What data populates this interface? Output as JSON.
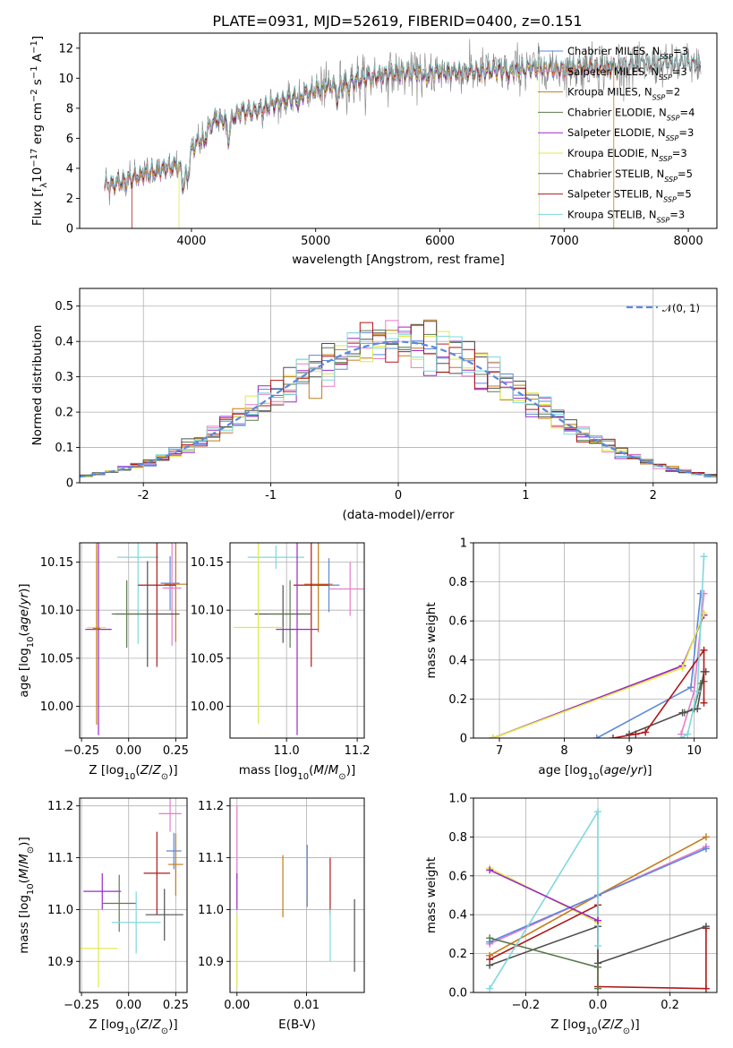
{
  "figure_title": "PLATE=0931, MJD=52619, FIBERID=0400, z=0.151",
  "colors": {
    "Chabrier MILES": "#5b88dc",
    "Salpeter MILES": "#e77bc9",
    "Kroupa MILES": "#c57b19",
    "Chabrier ELODIE": "#5d7a4f",
    "Salpeter ELODIE": "#9a28c9",
    "Kroupa ELODIE": "#e0e84a",
    "Chabrier STELIB": "#505050",
    "Salpeter STELIB": "#b01818",
    "Kroupa STELIB": "#7fd8dc",
    "data": "#808080",
    "gauss": "#5b88dc"
  },
  "chart_data": [
    {
      "id": "spectrum",
      "type": "line",
      "title": "PLATE=0931, MJD=52619, FIBERID=0400, z=0.151",
      "xlabel": "wavelength [Angstrom, rest frame]",
      "ylabel": "Flux [f_λ 10^-17 erg cm^-2 s^-1 A^-1]",
      "xlim": [
        3100,
        8230
      ],
      "ylim": [
        0,
        13
      ],
      "xticks": [
        4000,
        5000,
        6000,
        7000,
        8000
      ],
      "yticks": [
        0,
        2,
        4,
        6,
        8,
        10,
        12
      ],
      "grid": false,
      "legend_position": "upper-right",
      "legend": [
        {
          "name": "Chabrier MILES",
          "nssp": "3"
        },
        {
          "name": "Salpeter MILES",
          "nssp": "3"
        },
        {
          "name": "Kroupa MILES",
          "nssp": "2"
        },
        {
          "name": "Chabrier ELODIE",
          "nssp": "4"
        },
        {
          "name": "Salpeter ELODIE",
          "nssp": "3"
        },
        {
          "name": "Kroupa ELODIE",
          "nssp": "3"
        },
        {
          "name": "Chabrier STELIB",
          "nssp": "5"
        },
        {
          "name": "Salpeter STELIB",
          "nssp": "5"
        },
        {
          "name": "Kroupa STELIB",
          "nssp": "3"
        }
      ],
      "continuum": {
        "x": [
          3300,
          3400,
          3500,
          3600,
          3700,
          3800,
          3900,
          4000,
          4100,
          4200,
          4300,
          4400,
          4500,
          4600,
          4800,
          5000,
          5200,
          5400,
          5600,
          5800,
          6000,
          6200,
          6400,
          6600,
          6800,
          7000,
          7200,
          7400,
          7600,
          7800,
          8000,
          8100
        ],
        "y": [
          2.9,
          3.0,
          3.3,
          3.6,
          3.8,
          4.0,
          4.2,
          5.2,
          6.4,
          7.3,
          7.2,
          7.8,
          7.8,
          8.1,
          8.7,
          9.2,
          9.7,
          10.0,
          10.3,
          10.4,
          10.4,
          10.4,
          10.5,
          10.6,
          10.7,
          10.6,
          10.8,
          10.7,
          10.8,
          10.9,
          10.9,
          10.8
        ]
      }
    },
    {
      "id": "residuals",
      "type": "step",
      "xlabel": "(data-model)/error",
      "ylabel": "Normed distribution",
      "xlim": [
        -2.5,
        2.5
      ],
      "ylim": [
        0,
        0.55
      ],
      "xticks": [
        -2,
        -1,
        0,
        1,
        2
      ],
      "yticks": [
        0.0,
        0.1,
        0.2,
        0.3,
        0.4,
        0.5
      ],
      "grid": true,
      "legend_position": "upper-right",
      "gauss_label": "𝒩(0, 1)",
      "bin_width": 0.1
    },
    {
      "id": "age-vs-Z",
      "type": "scatter",
      "xlabel": "Z [log10(Z/Z⊙)]",
      "ylabel": "age  [log10(age/yr)]",
      "xlim": [
        -0.26,
        0.31
      ],
      "ylim": [
        9.967,
        10.17
      ],
      "xticks": [
        -0.25,
        0.0,
        0.25
      ],
      "xticklabels": [
        "−0.25",
        "0.00",
        "0.25"
      ],
      "yticks": [
        10.0,
        10.05,
        10.1,
        10.15
      ],
      "yticklabels": [
        "10.00",
        "10.05",
        "10.10",
        "10.15"
      ],
      "grid": true,
      "points": [
        {
          "model": "Kroupa STELIB",
          "x": 0.05,
          "xerr": 0.11,
          "y": 10.155,
          "yerr": 0.09
        },
        {
          "model": "Chabrier MILES",
          "x": 0.22,
          "xerr": 0.05,
          "y": 10.128,
          "yerr": 0.028
        },
        {
          "model": "Kroupa MILES",
          "x": 0.25,
          "xerr": 0.06,
          "y": 10.127,
          "yerr": 0.06
        },
        {
          "model": "Salpeter MILES",
          "x": 0.23,
          "xerr": 0.05,
          "y": 10.123,
          "yerr": 0.06
        },
        {
          "model": "Salpeter STELIB",
          "x": 0.15,
          "xerr": 0.1,
          "y": 10.126,
          "yerr": 0.085
        },
        {
          "model": "Chabrier STELIB",
          "x": 0.1,
          "xerr": 0.17,
          "y": 10.096,
          "yerr": 0.055
        },
        {
          "model": "Chabrier ELODIE",
          "x": -0.01,
          "xerr": 0.08,
          "y": 10.096,
          "yerr": 0.035
        },
        {
          "model": "Kroupa ELODIE",
          "x": -0.17,
          "xerr": 0.05,
          "y": 10.082,
          "yerr": 0.08
        },
        {
          "model": "Salpeter ELODIE",
          "x": -0.16,
          "xerr": 0.07,
          "y": 10.08,
          "yerr": 0.11
        },
        {
          "model": "Kroupa MILES",
          "x": -0.17,
          "xerr": 0.02,
          "y": 10.081,
          "yerr": 0.1
        }
      ]
    },
    {
      "id": "age-vs-mass",
      "type": "scatter",
      "xlabel": "mass [log10(M/M⊙)]",
      "xlim": [
        10.84,
        11.22
      ],
      "ylim": [
        9.967,
        10.17
      ],
      "xticks": [
        11.0,
        11.2
      ],
      "xticklabels": [
        "11.0",
        "11.2"
      ],
      "yticks": [
        10.0,
        10.05,
        10.1,
        10.15
      ],
      "yticklabels": [
        "10.00",
        "10.05",
        "10.10",
        "10.15"
      ],
      "grid": true,
      "points": [
        {
          "model": "Kroupa STELIB",
          "x": 10.97,
          "xerr": 0.08,
          "y": 10.155,
          "yerr": 0.012
        },
        {
          "model": "Chabrier MILES",
          "x": 11.12,
          "xerr": 0.03,
          "y": 10.126,
          "yerr": 0.028
        },
        {
          "model": "Kroupa MILES",
          "x": 11.09,
          "xerr": 0.04,
          "y": 10.127,
          "yerr": 0.05
        },
        {
          "model": "Salpeter MILES",
          "x": 11.18,
          "xerr": 0.06,
          "y": 10.122,
          "yerr": 0.028
        },
        {
          "model": "Salpeter STELIB",
          "x": 11.07,
          "xerr": 0.05,
          "y": 10.126,
          "yerr": 0.085
        },
        {
          "model": "Chabrier STELIB",
          "x": 10.99,
          "xerr": 0.08,
          "y": 10.096,
          "yerr": 0.03
        },
        {
          "model": "Chabrier ELODIE",
          "x": 11.01,
          "xerr": 0.06,
          "y": 10.096,
          "yerr": 0.035
        },
        {
          "model": "Kroupa ELODIE",
          "x": 10.92,
          "xerr": 0.07,
          "y": 10.082,
          "yerr": 0.1
        },
        {
          "model": "Salpeter ELODIE",
          "x": 11.03,
          "xerr": 0.06,
          "y": 10.08,
          "yerr": 0.11
        }
      ]
    },
    {
      "id": "mass-weight-vs-age",
      "type": "line",
      "xlabel": "age  [log10(age/yr)]",
      "ylabel": "mass weight",
      "xlim": [
        6.6,
        10.35
      ],
      "ylim": [
        0,
        1
      ],
      "xticks": [
        7,
        8,
        9,
        10
      ],
      "yticks": [
        0.0,
        0.2,
        0.4,
        0.6,
        0.8,
        1.0
      ],
      "grid": true,
      "series": [
        {
          "model": "Chabrier MILES",
          "x": [
            8.5,
            9.95,
            10.1
          ],
          "y": [
            0.0,
            0.26,
            0.74
          ]
        },
        {
          "model": "Salpeter MILES",
          "x": [
            9.8,
            10.0,
            10.15
          ],
          "y": [
            0.02,
            0.24,
            0.74
          ]
        },
        {
          "model": "Kroupa MILES",
          "x": [
            6.9,
            9.82,
            10.15
          ],
          "y": [
            0.0,
            0.37,
            0.63
          ]
        },
        {
          "model": "Chabrier ELODIE",
          "x": [
            9.85,
            10.0,
            10.1,
            10.15
          ],
          "y": [
            0.13,
            0.15,
            0.28,
            0.29
          ]
        },
        {
          "model": "Salpeter ELODIE",
          "x": [
            6.9,
            9.82,
            10.15
          ],
          "y": [
            0.0,
            0.37,
            0.63
          ]
        },
        {
          "model": "Kroupa ELODIE",
          "x": [
            6.9,
            9.82,
            10.15
          ],
          "y": [
            0.0,
            0.36,
            0.64
          ]
        },
        {
          "model": "Chabrier STELIB",
          "x": [
            9.0,
            9.82,
            10.05,
            10.15,
            10.18
          ],
          "y": [
            0.02,
            0.13,
            0.15,
            0.34,
            0.34
          ]
        },
        {
          "model": "Salpeter STELIB",
          "x": [
            8.75,
            9.1,
            9.25,
            10.15,
            10.15
          ],
          "y": [
            0.0,
            0.02,
            0.03,
            0.45,
            0.18
          ]
        },
        {
          "model": "Kroupa STELIB",
          "x": [
            9.8,
            9.9,
            10.05,
            10.15
          ],
          "y": [
            0.0,
            0.02,
            0.24,
            0.93
          ]
        }
      ]
    },
    {
      "id": "mass-vs-Z",
      "type": "scatter",
      "xlabel": "Z [log10(Z/Z⊙)]",
      "ylabel": "mass [log10(M/M⊙)]",
      "xlim": [
        -0.26,
        0.31
      ],
      "ylim": [
        10.84,
        11.215
      ],
      "xticks": [
        -0.25,
        0.0,
        0.25
      ],
      "xticklabels": [
        "−0.25",
        "0.00",
        "0.25"
      ],
      "yticks": [
        10.9,
        11.0,
        11.1,
        11.2
      ],
      "yticklabels": [
        "10.9",
        "11.0",
        "11.1",
        "11.2"
      ],
      "grid": true,
      "points": [
        {
          "model": "Salpeter MILES",
          "x": 0.22,
          "xerr": 0.06,
          "y": 11.185,
          "yerr": 0.035
        },
        {
          "model": "Chabrier MILES",
          "x": 0.24,
          "xerr": 0.04,
          "y": 11.113,
          "yerr": 0.035
        },
        {
          "model": "Kroupa MILES",
          "x": 0.25,
          "xerr": 0.04,
          "y": 11.087,
          "yerr": 0.06
        },
        {
          "model": "Salpeter STELIB",
          "x": 0.15,
          "xerr": 0.07,
          "y": 11.07,
          "yerr": 0.08
        },
        {
          "model": "Chabrier STELIB",
          "x": 0.19,
          "xerr": 0.1,
          "y": 10.99,
          "yerr": 0.05
        },
        {
          "model": "Salpeter ELODIE",
          "x": -0.14,
          "xerr": 0.1,
          "y": 11.035,
          "yerr": 0.035
        },
        {
          "model": "Chabrier ELODIE",
          "x": -0.05,
          "xerr": 0.09,
          "y": 11.012,
          "yerr": 0.055
        },
        {
          "model": "Kroupa STELIB",
          "x": 0.04,
          "xerr": 0.13,
          "y": 10.975,
          "yerr": 0.06
        },
        {
          "model": "Kroupa ELODIE",
          "x": -0.16,
          "xerr": 0.1,
          "y": 10.925,
          "yerr": 0.075
        }
      ]
    },
    {
      "id": "mass-vs-ebv",
      "type": "scatter",
      "xlabel": "E(B-V)",
      "xlim": [
        -0.001,
        0.0183
      ],
      "ylim": [
        10.84,
        11.215
      ],
      "xticks": [
        0.0,
        0.01
      ],
      "xticklabels": [
        "0.00",
        "0.01"
      ],
      "yticks": [
        10.9,
        11.0,
        11.1,
        11.2
      ],
      "yticklabels": [
        "10.9",
        "11.0",
        "11.1",
        "11.2"
      ],
      "grid": true,
      "points": [
        {
          "model": "Salpeter MILES",
          "x": 0.0,
          "xerr": 0,
          "y": 11.13,
          "yerr": 0.07
        },
        {
          "model": "Salpeter ELODIE",
          "x": 0.0,
          "xerr": 0,
          "y": 11.035,
          "yerr": 0.035
        },
        {
          "model": "Kroupa ELODIE",
          "x": 0.0,
          "xerr": 0,
          "y": 10.92,
          "yerr": 0.07
        },
        {
          "model": "Kroupa MILES",
          "x": 0.0066,
          "xerr": 0,
          "y": 11.045,
          "yerr": 0.06
        },
        {
          "model": "Chabrier MILES",
          "x": 0.0101,
          "xerr": 0,
          "y": 11.065,
          "yerr": 0.06
        },
        {
          "model": "Salpeter STELIB",
          "x": 0.0134,
          "xerr": 0,
          "y": 11.045,
          "yerr": 0.055
        },
        {
          "model": "Kroupa STELIB",
          "x": 0.0134,
          "xerr": 0,
          "y": 10.95,
          "yerr": 0.05
        },
        {
          "model": "Chabrier STELIB",
          "x": 0.0169,
          "xerr": 0,
          "y": 10.95,
          "yerr": 0.07
        }
      ]
    },
    {
      "id": "mass-weight-vs-Z",
      "type": "line",
      "xlabel": "Z [log10(Z/Z⊙)]",
      "ylabel": "mass weight",
      "xlim": [
        -0.345,
        0.33
      ],
      "ylim": [
        0,
        1
      ],
      "xticks": [
        -0.2,
        0.0,
        0.2
      ],
      "xticklabels": [
        "−0.2",
        "0.0",
        "0.2"
      ],
      "yticks": [
        0.0,
        0.2,
        0.4,
        0.6,
        0.8,
        1.0
      ],
      "yticklabels": [
        "0.0",
        "0.2",
        "0.4",
        "0.6",
        "0.8",
        "1.0"
      ],
      "grid": true,
      "series": [
        {
          "model": "Kroupa ELODIE",
          "x": [
            -0.3,
            0.0
          ],
          "y": [
            0.64,
            0.36
          ]
        },
        {
          "model": "Kroupa MILES",
          "x": [
            -0.3,
            0.0,
            0.3
          ],
          "y": [
            0.19,
            0.5,
            0.8
          ]
        },
        {
          "model": "Salpeter MILES",
          "x": [
            -0.3,
            0.0,
            0.3
          ],
          "y": [
            0.25,
            0.5,
            0.75
          ]
        },
        {
          "model": "Chabrier MILES",
          "x": [
            -0.3,
            0.0,
            0.3
          ],
          "y": [
            0.26,
            0.5,
            0.74
          ]
        },
        {
          "model": "Salpeter STELIB",
          "x": [
            -0.3,
            0.0,
            0.0,
            0.3,
            0.3
          ],
          "y": [
            0.17,
            0.45,
            0.03,
            0.02,
            0.33
          ]
        },
        {
          "model": "Chabrier STELIB",
          "x": [
            -0.3,
            0.0,
            0.0,
            0.3
          ],
          "y": [
            0.14,
            0.34,
            0.15,
            0.34
          ]
        },
        {
          "model": "Chabrier ELODIE",
          "x": [
            -0.3,
            0.0,
            0.0
          ],
          "y": [
            0.28,
            0.13,
            0.02
          ]
        },
        {
          "model": "Kroupa STELIB",
          "x": [
            -0.3,
            0.0,
            0.0
          ],
          "y": [
            0.02,
            0.93,
            0.24
          ]
        },
        {
          "model": "Salpeter ELODIE",
          "x": [
            -0.3,
            0.0
          ],
          "y": [
            0.63,
            0.37
          ]
        }
      ]
    }
  ]
}
